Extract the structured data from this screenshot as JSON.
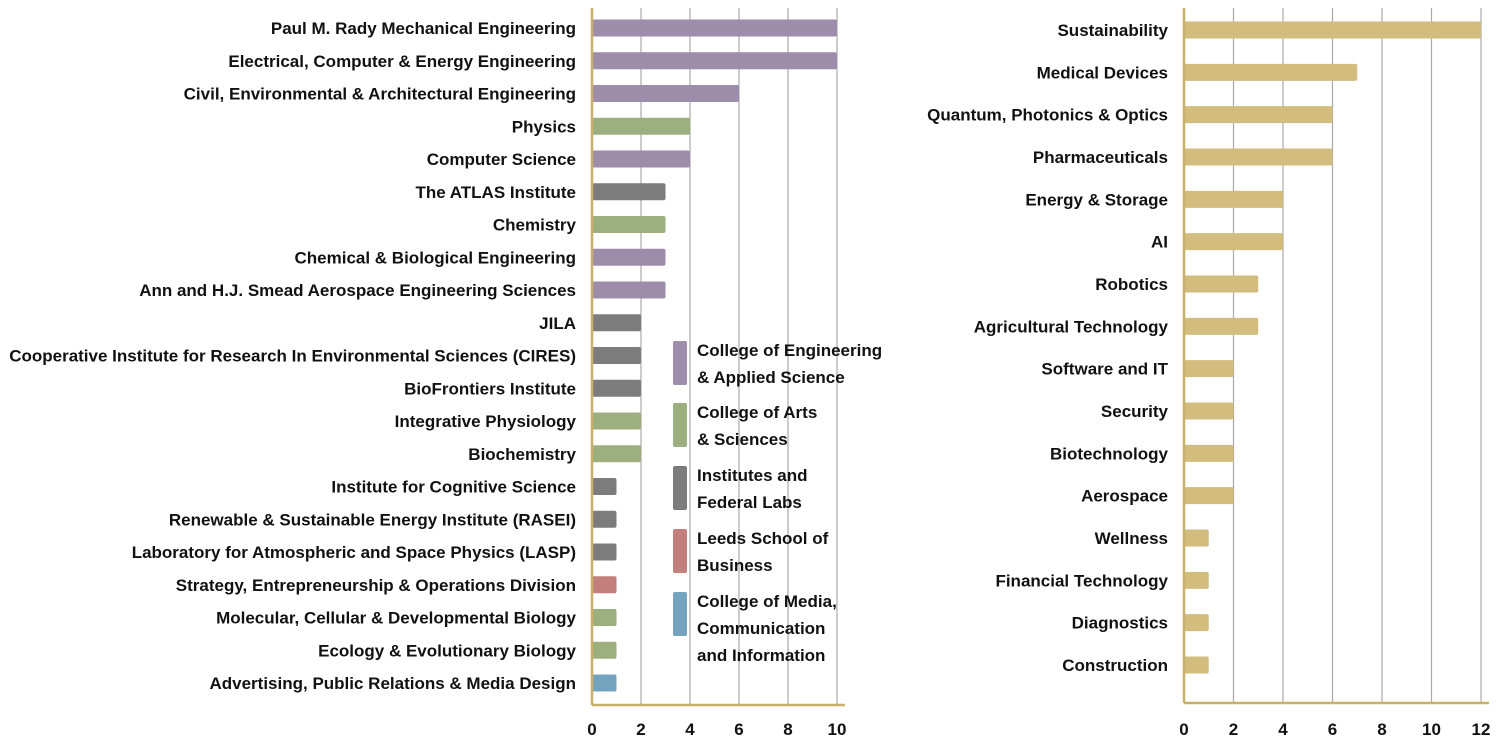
{
  "colors": {
    "axis": "#c9b06a",
    "grid": "#a9a9a9",
    "engineering": "#9d8caa",
    "arts_sciences": "#9cb07f",
    "institutes": "#7c7c7c",
    "leeds": "#c27f7b",
    "cmci": "#74a3bd",
    "industry": "#d2bc7e"
  },
  "legend": {
    "items": [
      {
        "key": "engineering",
        "lines": [
          "College of Engineering",
          "& Applied Science"
        ]
      },
      {
        "key": "arts_sciences",
        "lines": [
          "College of Arts",
          "& Sciences"
        ]
      },
      {
        "key": "institutes",
        "lines": [
          "Institutes and",
          "Federal Labs"
        ]
      },
      {
        "key": "leeds",
        "lines": [
          "Leeds School of",
          "Business"
        ]
      },
      {
        "key": "cmci",
        "lines": [
          "College of Media,",
          "Communication",
          "and Information"
        ]
      }
    ]
  },
  "chart_data": [
    {
      "type": "bar",
      "orientation": "horizontal",
      "title": "",
      "xlabel": "",
      "ylabel": "",
      "xlim": [
        0,
        10
      ],
      "xticks": [
        0,
        2,
        4,
        6,
        8,
        10
      ],
      "grid": true,
      "legend_position": "bottom-right",
      "categories": [
        "Paul M. Rady Mechanical Engineering",
        "Electrical, Computer & Energy Engineering",
        "Civil, Environmental & Architectural Engineering",
        "Physics",
        "Computer Science",
        "The ATLAS Institute",
        "Chemistry",
        "Chemical & Biological Engineering",
        "Ann and H.J. Smead Aerospace Engineering Sciences",
        "JILA",
        "Cooperative Institute for Research In Environmental Sciences (CIRES)",
        "BioFrontiers Institute",
        "Integrative Physiology",
        "Biochemistry",
        "Institute for Cognitive Science",
        "Renewable & Sustainable Energy Institute (RASEI)",
        "Laboratory for Atmospheric and Space Physics (LASP)",
        "Strategy, Entrepreneurship & Operations Division",
        "Molecular, Cellular & Developmental Biology",
        "Ecology & Evolutionary Biology",
        "Advertising, Public Relations & Media Design"
      ],
      "values": [
        10,
        10,
        6,
        4,
        4,
        3,
        3,
        3,
        3,
        2,
        2,
        2,
        2,
        2,
        1,
        1,
        1,
        1,
        1,
        1,
        1
      ],
      "groups": [
        "engineering",
        "engineering",
        "engineering",
        "arts_sciences",
        "engineering",
        "institutes",
        "arts_sciences",
        "engineering",
        "engineering",
        "institutes",
        "institutes",
        "institutes",
        "arts_sciences",
        "arts_sciences",
        "institutes",
        "institutes",
        "institutes",
        "leeds",
        "arts_sciences",
        "arts_sciences",
        "cmci"
      ]
    },
    {
      "type": "bar",
      "orientation": "horizontal",
      "title": "",
      "xlabel": "",
      "ylabel": "",
      "xlim": [
        0,
        12
      ],
      "xticks": [
        0,
        2,
        4,
        6,
        8,
        10,
        12
      ],
      "grid": true,
      "categories": [
        "Sustainability",
        "Medical Devices",
        "Quantum, Photonics & Optics",
        "Pharmaceuticals",
        "Energy & Storage",
        "AI",
        "Robotics",
        "Agricultural Technology",
        "Software and IT",
        "Security",
        "Biotechnology",
        "Aerospace",
        "Wellness",
        "Financial Technology",
        "Diagnostics",
        "Construction"
      ],
      "values": [
        12,
        7,
        6,
        6,
        4,
        4,
        3,
        3,
        2,
        2,
        2,
        2,
        1,
        1,
        1,
        1
      ]
    }
  ]
}
